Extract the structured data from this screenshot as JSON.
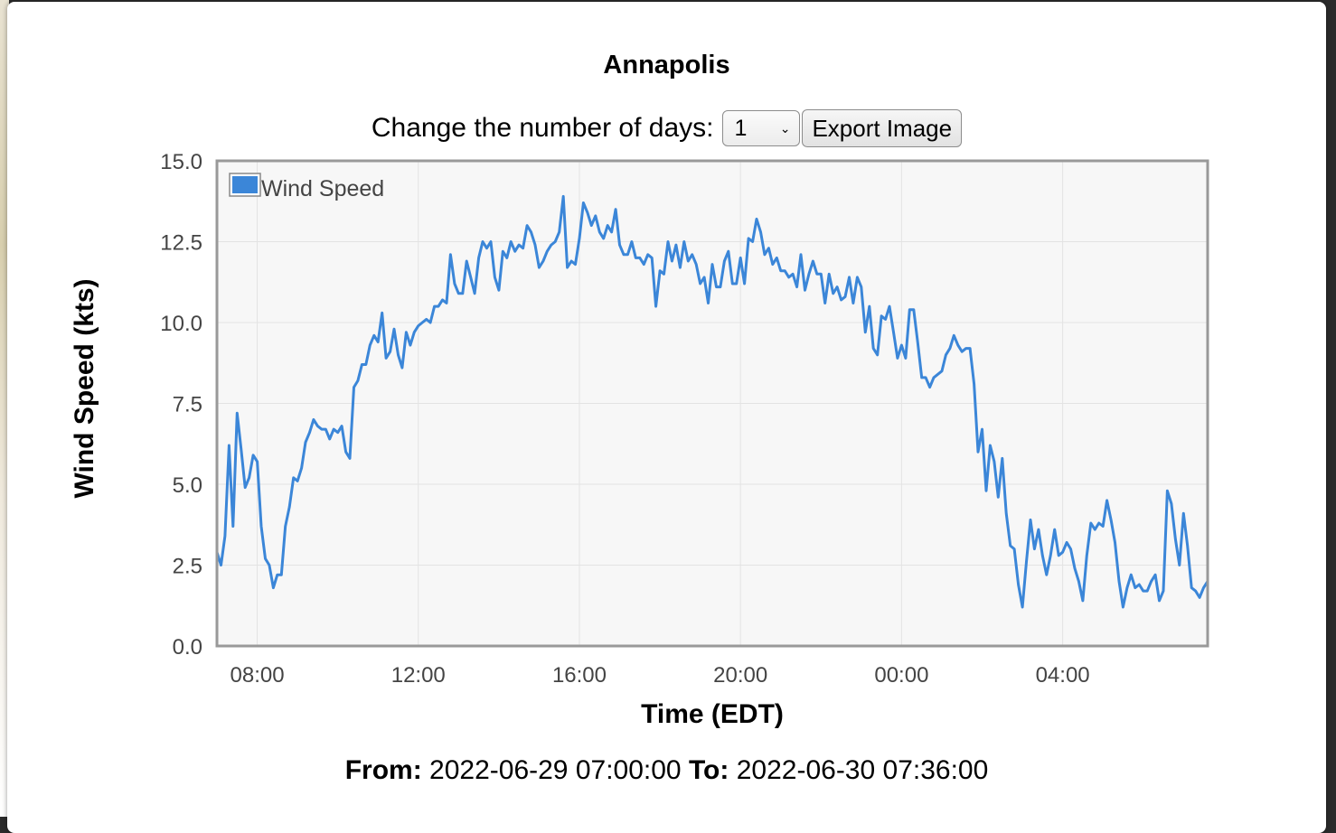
{
  "title": "Annapolis",
  "controls": {
    "days_label": "Change the number of days:",
    "days_selected": "1",
    "export_label": "Export Image"
  },
  "range": {
    "from_label": "From:",
    "from_value": "2022-06-29 07:00:00",
    "to_label": "To:",
    "to_value": "2022-06-30 07:36:00"
  },
  "colors": {
    "series": "#3b86d8",
    "plot_bg": "#f7f7f7",
    "frame": "#999999"
  },
  "chart_data": {
    "type": "line",
    "title": "Annapolis",
    "xlabel": "Time (EDT)",
    "ylabel": "Wind Speed (kts)",
    "ylim": [
      0,
      15
    ],
    "xlim": [
      "2022-06-29 07:00",
      "2022-06-30 07:36"
    ],
    "yticks": [
      "0.0",
      "2.5",
      "5.0",
      "7.5",
      "10.0",
      "12.5",
      "15.0"
    ],
    "xticks": [
      {
        "label": "08:00",
        "t": "2022-06-29 08:00"
      },
      {
        "label": "12:00",
        "t": "2022-06-29 12:00"
      },
      {
        "label": "16:00",
        "t": "2022-06-29 16:00"
      },
      {
        "label": "20:00",
        "t": "2022-06-29 20:00"
      },
      {
        "label": "00:00",
        "t": "2022-06-30 00:00"
      },
      {
        "label": "04:00",
        "t": "2022-06-30 04:00"
      }
    ],
    "grid": true,
    "legend": "top-left",
    "series": [
      {
        "name": "Wind Speed",
        "x": [
          "2022-06-29 07:00",
          "2022-06-29 07:06",
          "2022-06-29 07:12",
          "2022-06-29 07:18",
          "2022-06-29 07:24",
          "2022-06-29 07:30",
          "2022-06-29 07:36",
          "2022-06-29 07:42",
          "2022-06-29 07:48",
          "2022-06-29 07:54",
          "2022-06-29 08:00",
          "2022-06-29 08:06",
          "2022-06-29 08:12",
          "2022-06-29 08:18",
          "2022-06-29 08:24",
          "2022-06-29 08:30",
          "2022-06-29 08:36",
          "2022-06-29 08:42",
          "2022-06-29 08:48",
          "2022-06-29 08:54",
          "2022-06-29 09:00",
          "2022-06-29 09:06",
          "2022-06-29 09:12",
          "2022-06-29 09:18",
          "2022-06-29 09:24",
          "2022-06-29 09:30",
          "2022-06-29 09:36",
          "2022-06-29 09:42",
          "2022-06-29 09:48",
          "2022-06-29 09:54",
          "2022-06-29 10:00",
          "2022-06-29 10:06",
          "2022-06-29 10:12",
          "2022-06-29 10:18",
          "2022-06-29 10:24",
          "2022-06-29 10:30",
          "2022-06-29 10:36",
          "2022-06-29 10:42",
          "2022-06-29 10:48",
          "2022-06-29 10:54",
          "2022-06-29 11:00",
          "2022-06-29 11:06",
          "2022-06-29 11:12",
          "2022-06-29 11:18",
          "2022-06-29 11:24",
          "2022-06-29 11:30",
          "2022-06-29 11:36",
          "2022-06-29 11:42",
          "2022-06-29 11:48",
          "2022-06-29 11:54",
          "2022-06-29 12:00",
          "2022-06-29 12:06",
          "2022-06-29 12:12",
          "2022-06-29 12:18",
          "2022-06-29 12:24",
          "2022-06-29 12:30",
          "2022-06-29 12:36",
          "2022-06-29 12:42",
          "2022-06-29 12:48",
          "2022-06-29 12:54",
          "2022-06-29 13:00",
          "2022-06-29 13:06",
          "2022-06-29 13:12",
          "2022-06-29 13:18",
          "2022-06-29 13:24",
          "2022-06-29 13:30",
          "2022-06-29 13:36",
          "2022-06-29 13:42",
          "2022-06-29 13:48",
          "2022-06-29 13:54",
          "2022-06-29 14:00",
          "2022-06-29 14:06",
          "2022-06-29 14:12",
          "2022-06-29 14:18",
          "2022-06-29 14:24",
          "2022-06-29 14:30",
          "2022-06-29 14:36",
          "2022-06-29 14:42",
          "2022-06-29 14:48",
          "2022-06-29 14:54",
          "2022-06-29 15:00",
          "2022-06-29 15:06",
          "2022-06-29 15:12",
          "2022-06-29 15:18",
          "2022-06-29 15:24",
          "2022-06-29 15:30",
          "2022-06-29 15:36",
          "2022-06-29 15:42",
          "2022-06-29 15:48",
          "2022-06-29 15:54",
          "2022-06-29 16:00",
          "2022-06-29 16:06",
          "2022-06-29 16:12",
          "2022-06-29 16:18",
          "2022-06-29 16:24",
          "2022-06-29 16:30",
          "2022-06-29 16:36",
          "2022-06-29 16:42",
          "2022-06-29 16:48",
          "2022-06-29 16:54",
          "2022-06-29 17:00",
          "2022-06-29 17:06",
          "2022-06-29 17:12",
          "2022-06-29 17:18",
          "2022-06-29 17:24",
          "2022-06-29 17:30",
          "2022-06-29 17:36",
          "2022-06-29 17:42",
          "2022-06-29 17:48",
          "2022-06-29 17:54",
          "2022-06-29 18:00",
          "2022-06-29 18:06",
          "2022-06-29 18:12",
          "2022-06-29 18:18",
          "2022-06-29 18:24",
          "2022-06-29 18:30",
          "2022-06-29 18:36",
          "2022-06-29 18:42",
          "2022-06-29 18:48",
          "2022-06-29 18:54",
          "2022-06-29 19:00",
          "2022-06-29 19:06",
          "2022-06-29 19:12",
          "2022-06-29 19:18",
          "2022-06-29 19:24",
          "2022-06-29 19:30",
          "2022-06-29 19:36",
          "2022-06-29 19:42",
          "2022-06-29 19:48",
          "2022-06-29 19:54",
          "2022-06-29 20:00",
          "2022-06-29 20:06",
          "2022-06-29 20:12",
          "2022-06-29 20:18",
          "2022-06-29 20:24",
          "2022-06-29 20:30",
          "2022-06-29 20:36",
          "2022-06-29 20:42",
          "2022-06-29 20:48",
          "2022-06-29 20:54",
          "2022-06-29 21:00",
          "2022-06-29 21:06",
          "2022-06-29 21:12",
          "2022-06-29 21:18",
          "2022-06-29 21:24",
          "2022-06-29 21:30",
          "2022-06-29 21:36",
          "2022-06-29 21:42",
          "2022-06-29 21:48",
          "2022-06-29 21:54",
          "2022-06-29 22:00",
          "2022-06-29 22:06",
          "2022-06-29 22:12",
          "2022-06-29 22:18",
          "2022-06-29 22:24",
          "2022-06-29 22:30",
          "2022-06-29 22:36",
          "2022-06-29 22:42",
          "2022-06-29 22:48",
          "2022-06-29 22:54",
          "2022-06-29 23:00",
          "2022-06-29 23:06",
          "2022-06-29 23:12",
          "2022-06-29 23:18",
          "2022-06-29 23:24",
          "2022-06-29 23:30",
          "2022-06-29 23:36",
          "2022-06-29 23:42",
          "2022-06-29 23:48",
          "2022-06-29 23:54",
          "2022-06-30 00:00",
          "2022-06-30 00:06",
          "2022-06-30 00:12",
          "2022-06-30 00:18",
          "2022-06-30 00:24",
          "2022-06-30 00:30",
          "2022-06-30 00:36",
          "2022-06-30 00:42",
          "2022-06-30 00:48",
          "2022-06-30 00:54",
          "2022-06-30 01:00",
          "2022-06-30 01:06",
          "2022-06-30 01:12",
          "2022-06-30 01:18",
          "2022-06-30 01:24",
          "2022-06-30 01:30",
          "2022-06-30 01:36",
          "2022-06-30 01:42",
          "2022-06-30 01:48",
          "2022-06-30 01:54",
          "2022-06-30 02:00",
          "2022-06-30 02:06",
          "2022-06-30 02:12",
          "2022-06-30 02:18",
          "2022-06-30 02:24",
          "2022-06-30 02:30",
          "2022-06-30 02:36",
          "2022-06-30 02:42",
          "2022-06-30 02:48",
          "2022-06-30 02:54",
          "2022-06-30 03:00",
          "2022-06-30 03:06",
          "2022-06-30 03:12",
          "2022-06-30 03:18",
          "2022-06-30 03:24",
          "2022-06-30 03:30",
          "2022-06-30 03:36",
          "2022-06-30 03:42",
          "2022-06-30 03:48",
          "2022-06-30 03:54",
          "2022-06-30 04:00",
          "2022-06-30 04:06",
          "2022-06-30 04:12",
          "2022-06-30 04:18",
          "2022-06-30 04:24",
          "2022-06-30 04:30",
          "2022-06-30 04:36",
          "2022-06-30 04:42",
          "2022-06-30 04:48",
          "2022-06-30 04:54",
          "2022-06-30 05:00",
          "2022-06-30 05:06",
          "2022-06-30 05:12",
          "2022-06-30 05:18",
          "2022-06-30 05:24",
          "2022-06-30 05:30",
          "2022-06-30 05:36",
          "2022-06-30 05:42",
          "2022-06-30 05:48",
          "2022-06-30 05:54",
          "2022-06-30 06:00",
          "2022-06-30 06:06",
          "2022-06-30 06:12",
          "2022-06-30 06:18",
          "2022-06-30 06:24",
          "2022-06-30 06:30",
          "2022-06-30 06:36",
          "2022-06-30 06:42",
          "2022-06-30 06:48",
          "2022-06-30 06:54",
          "2022-06-30 07:00",
          "2022-06-30 07:06",
          "2022-06-30 07:12",
          "2022-06-30 07:18",
          "2022-06-30 07:24",
          "2022-06-30 07:30",
          "2022-06-30 07:36"
        ],
        "y": [
          2.9,
          2.5,
          3.4,
          6.2,
          3.7,
          7.2,
          6.1,
          4.9,
          5.2,
          5.9,
          5.7,
          3.7,
          2.7,
          2.5,
          1.8,
          2.2,
          2.2,
          3.7,
          4.3,
          5.2,
          5.1,
          5.5,
          6.3,
          6.6,
          7.0,
          6.8,
          6.7,
          6.7,
          6.4,
          6.7,
          6.6,
          6.8,
          6.0,
          5.8,
          8.0,
          8.2,
          8.7,
          8.7,
          9.3,
          9.6,
          9.4,
          10.3,
          8.9,
          9.1,
          9.8,
          9.0,
          8.6,
          9.7,
          9.3,
          9.7,
          9.9,
          10.0,
          10.1,
          10.0,
          10.5,
          10.5,
          10.7,
          10.6,
          12.1,
          11.2,
          10.9,
          10.9,
          11.9,
          11.4,
          10.9,
          12.0,
          12.5,
          12.3,
          12.5,
          11.4,
          11.0,
          12.2,
          12.0,
          12.5,
          12.2,
          12.4,
          12.3,
          13.0,
          12.8,
          12.4,
          11.7,
          11.9,
          12.2,
          12.4,
          12.5,
          12.8,
          13.9,
          11.7,
          11.9,
          11.8,
          12.6,
          13.7,
          13.4,
          13.0,
          13.3,
          12.8,
          12.6,
          13.0,
          12.8,
          13.5,
          12.4,
          12.1,
          12.1,
          12.5,
          12.0,
          12.0,
          11.8,
          12.1,
          12.0,
          10.5,
          11.6,
          11.5,
          12.5,
          11.9,
          12.4,
          11.7,
          12.5,
          11.9,
          12.1,
          11.8,
          11.2,
          11.4,
          10.6,
          11.8,
          11.1,
          11.1,
          11.9,
          12.2,
          11.2,
          11.2,
          12.0,
          11.2,
          12.6,
          12.5,
          13.2,
          12.8,
          12.1,
          12.3,
          11.8,
          12.0,
          11.6,
          11.6,
          11.4,
          11.5,
          11.1,
          12.1,
          11.0,
          11.5,
          11.9,
          11.5,
          11.5,
          10.6,
          11.5,
          10.9,
          11.1,
          10.7,
          10.8,
          11.4,
          10.6,
          11.4,
          11.1,
          9.7,
          10.5,
          9.2,
          9.0,
          10.2,
          10.1,
          10.5,
          9.7,
          8.9,
          9.3,
          8.9,
          10.4,
          10.4,
          9.4,
          8.3,
          8.3,
          8.0,
          8.3,
          8.4,
          8.5,
          9.0,
          9.2,
          9.6,
          9.3,
          9.1,
          9.2,
          9.2,
          8.1,
          6.0,
          6.7,
          4.8,
          6.2,
          5.7,
          4.6,
          5.8,
          4.1,
          3.1,
          3.0,
          1.9,
          1.2,
          2.6,
          3.9,
          3.0,
          3.6,
          2.8,
          2.2,
          2.8,
          3.6,
          2.8,
          2.9,
          3.2,
          3.0,
          2.4,
          2.0,
          1.4,
          2.8,
          3.8,
          3.6,
          3.8,
          3.7,
          4.5,
          3.9,
          3.2,
          2.0,
          1.2,
          1.8,
          2.2,
          1.8,
          1.9,
          1.7,
          1.7,
          2.0,
          2.2,
          1.4,
          1.7,
          4.8,
          4.4,
          3.3,
          2.5,
          4.1,
          3.1,
          1.8,
          1.7,
          1.5,
          1.8,
          2.0
        ]
      }
    ]
  }
}
